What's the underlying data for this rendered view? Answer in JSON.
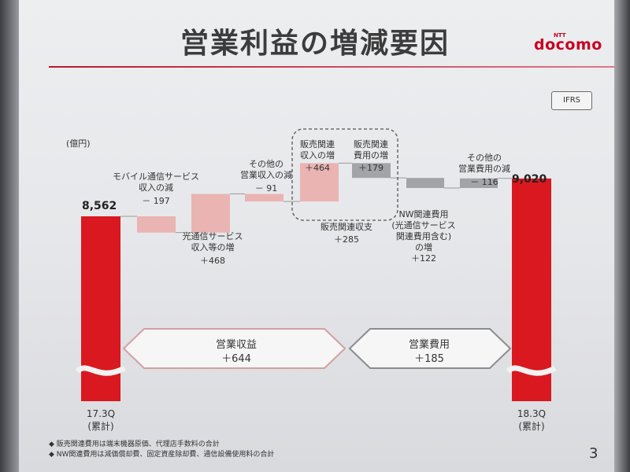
{
  "slide": {
    "title": "営業利益の増減要因",
    "brand_small": "NTT",
    "brand": "docomo",
    "badge": "IFRS",
    "page_number": "3",
    "footnotes": [
      "◆ 販売関連費用は端末機器原価、代理店手数料の合計",
      "◆ NW関連費用は減価償却費、固定資産除却費、通信設備使用料の合計"
    ]
  },
  "chart_data": {
    "type": "bar",
    "subtype": "waterfall",
    "unit": "(億円)",
    "start": {
      "period": [
        "17.3Q",
        "(累計)"
      ],
      "value": 8562,
      "value_label": "8,562"
    },
    "end": {
      "period": [
        "18.3Q",
        "(累計)"
      ],
      "value": 9020,
      "value_label": "9,020"
    },
    "steps": [
      {
        "label": [
          "モバイル通信サービス",
          "収入の減"
        ],
        "value": -197,
        "value_label": "－ 197"
      },
      {
        "label": [
          "光通信サービス",
          "収入等の増"
        ],
        "value": 468,
        "value_label": "＋468"
      },
      {
        "label": [
          "その他の",
          "営業収入の減"
        ],
        "value": -91,
        "value_label": "－ 91"
      },
      {
        "label": [
          "販売関連",
          "収入の増"
        ],
        "value": 464,
        "value_label": "＋464"
      },
      {
        "label": [
          "販売関連",
          "費用の増"
        ],
        "value": 179,
        "value_label": "＋179"
      },
      {
        "label": [
          "NW関連費用",
          "(光通信サービス",
          "関連費用含む)",
          "の増"
        ],
        "value": 122,
        "value_label": "＋122"
      },
      {
        "label": [
          "その他の",
          "営業費用の減"
        ],
        "value": -116,
        "value_label": "－ 116"
      }
    ],
    "group_note": {
      "label": "販売関連収支",
      "value_label": "＋285"
    },
    "totals": [
      {
        "label": "営業収益",
        "value": 644,
        "value_label": "＋644"
      },
      {
        "label": "営業費用",
        "value": 185,
        "value_label": "＋185"
      }
    ],
    "colors": {
      "start_end": "#d9191f",
      "revenue_step": "#e9b4b2",
      "cost_step": "#a3a4a7",
      "revenue_arrow": "#d4a0a2",
      "cost_arrow": "#8b8c90"
    }
  }
}
